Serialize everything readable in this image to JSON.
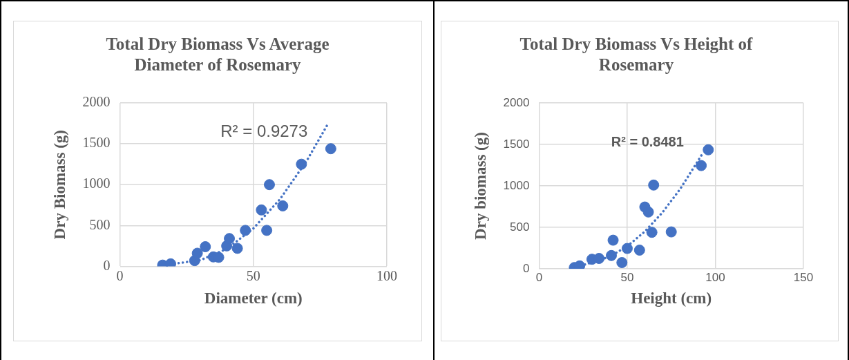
{
  "chart_data": [
    {
      "type": "scatter",
      "title": "Total Dry Biomass Vs Average Diameter of Rosemary",
      "xlabel": "Diameter (cm)",
      "ylabel": "Dry Biomass (g)",
      "xlim": [
        0,
        100
      ],
      "xticks": [
        0,
        50,
        100
      ],
      "ylim": [
        0,
        2000
      ],
      "yticks": [
        0,
        500,
        1000,
        1500,
        2000
      ],
      "grid": true,
      "legend": false,
      "series": [
        {
          "color": "#4472c4",
          "marker": "circle",
          "x": [
            16,
            19,
            28,
            29,
            32,
            35,
            37,
            40,
            41,
            44,
            47,
            53,
            55,
            56,
            61,
            68,
            79
          ],
          "values": [
            15,
            30,
            70,
            160,
            240,
            115,
            110,
            250,
            340,
            220,
            440,
            690,
            440,
            1000,
            740,
            1250,
            1440
          ]
        },
        {
          "type": "line",
          "color": "#4472c4",
          "marker": "none",
          "line_style": "dotted",
          "x": [
            22,
            30,
            40,
            50,
            60,
            70,
            78
          ],
          "values": [
            40,
            73,
            213,
            463,
            823,
            1293,
            1748
          ]
        }
      ],
      "annotations": [
        "R² = 0.9273"
      ]
    },
    {
      "type": "scatter",
      "title": "Total Dry Biomass Vs Height of Rosemary",
      "xlabel": "Height (cm)",
      "ylabel": "Dry biomass (g)",
      "xlim": [
        0,
        150
      ],
      "xticks": [
        0,
        50,
        100,
        150
      ],
      "ylim": [
        0,
        2000
      ],
      "yticks": [
        0,
        500,
        1000,
        1500,
        2000
      ],
      "grid": true,
      "legend": false,
      "series": [
        {
          "color": "#4472c4",
          "marker": "circle",
          "x": [
            20,
            23,
            30,
            34,
            41,
            42,
            47,
            50,
            57,
            60,
            62,
            64,
            65,
            75,
            92,
            96
          ],
          "values": [
            15,
            35,
            115,
            125,
            160,
            345,
            75,
            245,
            225,
            745,
            685,
            440,
            1010,
            445,
            1245,
            1435
          ]
        },
        {
          "type": "line",
          "color": "#4472c4",
          "marker": "none",
          "line_style": "dotted",
          "x": [
            26,
            40,
            50,
            60,
            70,
            80,
            92.5
          ],
          "values": [
            51,
            145,
            272,
            450,
            679,
            960,
            1381
          ]
        }
      ],
      "annotations": [
        "R² = 0.8481"
      ]
    }
  ]
}
